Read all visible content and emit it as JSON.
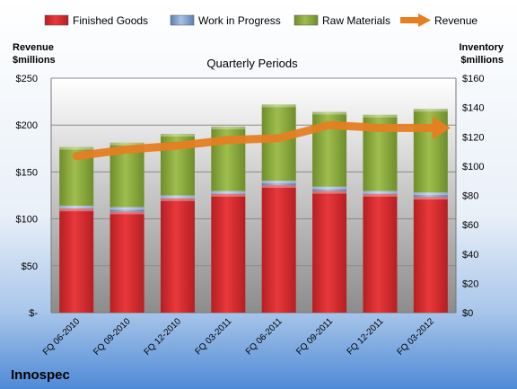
{
  "company": "Innospec",
  "chart_data": {
    "type": "bar",
    "subtitle": "Quarterly Periods",
    "left_axis_label": [
      "Revenue",
      "$millions"
    ],
    "right_axis_label": [
      "Inventory",
      "$millions"
    ],
    "categories": [
      "FQ 06-2010",
      "FQ 09-2010",
      "FQ 12-2010",
      "FQ 03-2011",
      "FQ 06-2011",
      "FQ 09-2011",
      "FQ 12-2011",
      "FQ 03-2012"
    ],
    "stacked": true,
    "legend_position": "top",
    "grid": true,
    "left_axis": {
      "min": 0,
      "max": 250,
      "ticks": [
        "$-",
        "$50",
        "$100",
        "$150",
        "$200",
        "$250"
      ]
    },
    "right_axis": {
      "min": 0,
      "max": 160,
      "ticks": [
        "$0",
        "$20",
        "$40",
        "$60",
        "$80",
        "$100",
        "$120",
        "$140",
        "$160"
      ]
    },
    "series": [
      {
        "name": "Finished Goods",
        "axis": "right",
        "kind": "bar",
        "color": "#d9262a",
        "values": [
          71,
          69,
          78,
          81,
          87,
          83,
          81,
          79
        ]
      },
      {
        "name": "Work in Progress",
        "axis": "right",
        "kind": "bar",
        "color": "#7f9cc9",
        "values": [
          2,
          3,
          2,
          2,
          3,
          3,
          2,
          3
        ]
      },
      {
        "name": "Raw Materials",
        "axis": "right",
        "kind": "bar",
        "color": "#8fae3c",
        "values": [
          40,
          44,
          42,
          44,
          52,
          51,
          52,
          57
        ]
      },
      {
        "name": "Revenue",
        "axis": "left",
        "kind": "line",
        "color": "#e67e22",
        "values": [
          167,
          174,
          178,
          184,
          186,
          200,
          197,
          197
        ]
      }
    ]
  }
}
